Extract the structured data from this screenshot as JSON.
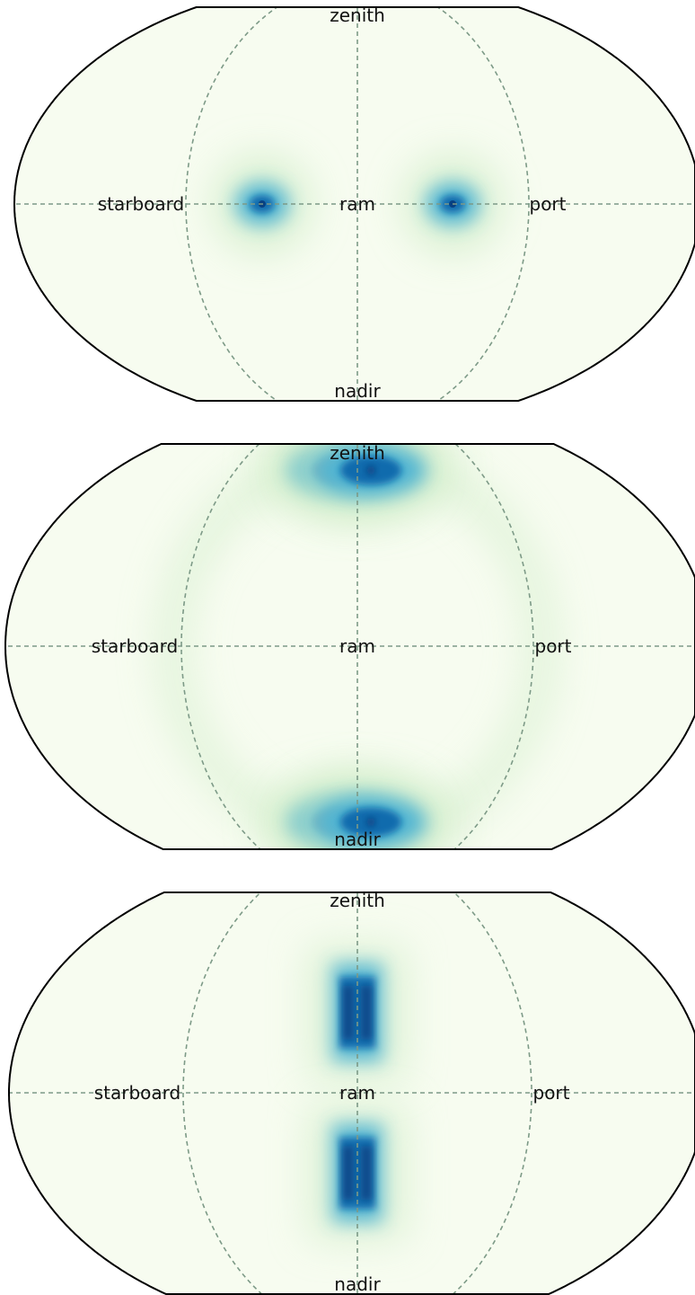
{
  "chart_data": [
    {
      "type": "heatmap",
      "projection": "hammer-like all-sky (elliptical)",
      "grid": true,
      "labels": {
        "top": "zenith",
        "bottom": "nadir",
        "left": "starboard",
        "center": "ram",
        "right": "port"
      },
      "colormap": [
        "#f7fcf0",
        "#e0f3db",
        "#ccebc5",
        "#a8ddb5",
        "#7bccc4",
        "#4eb3d3",
        "#2b8cbe",
        "#0868ac",
        "#084081"
      ],
      "hotspots": [
        {
          "lon": -50,
          "lat": 0,
          "intensity": 1.0
        },
        {
          "lon": 50,
          "lat": 0,
          "intensity": 1.0
        }
      ]
    },
    {
      "type": "heatmap",
      "projection": "hammer-like all-sky (elliptical)",
      "grid": true,
      "labels": {
        "top": "zenith",
        "bottom": "nadir",
        "left": "starboard",
        "center": "ram",
        "right": "port"
      },
      "colormap": [
        "#f7fcf0",
        "#e0f3db",
        "#ccebc5",
        "#a8ddb5",
        "#7bccc4",
        "#4eb3d3",
        "#2b8cbe",
        "#0868ac",
        "#084081"
      ],
      "hotspots": [
        {
          "lon": -10,
          "lat": 65,
          "intensity": 1.0
        },
        {
          "lon": 10,
          "lat": 65,
          "intensity": 1.0
        },
        {
          "lon": -10,
          "lat": -65,
          "intensity": 1.0
        },
        {
          "lon": 10,
          "lat": -65,
          "intensity": 1.0
        }
      ],
      "ring": {
        "lon_half_width": 45,
        "intensity": 0.15
      }
    },
    {
      "type": "heatmap",
      "projection": "hammer-like all-sky (elliptical)",
      "grid": true,
      "labels": {
        "top": "zenith",
        "bottom": "nadir",
        "left": "starboard",
        "center": "ram",
        "right": "port"
      },
      "colormap": [
        "#f7fcf0",
        "#e0f3db",
        "#ccebc5",
        "#a8ddb5",
        "#7bccc4",
        "#4eb3d3",
        "#2b8cbe",
        "#0868ac",
        "#084081"
      ],
      "hotspots": [
        {
          "lon": 0,
          "lat": 30,
          "intensity": 1.0,
          "shape": "vertical-band"
        },
        {
          "lon": 0,
          "lat": -30,
          "intensity": 1.0,
          "shape": "vertical-band"
        }
      ]
    }
  ]
}
